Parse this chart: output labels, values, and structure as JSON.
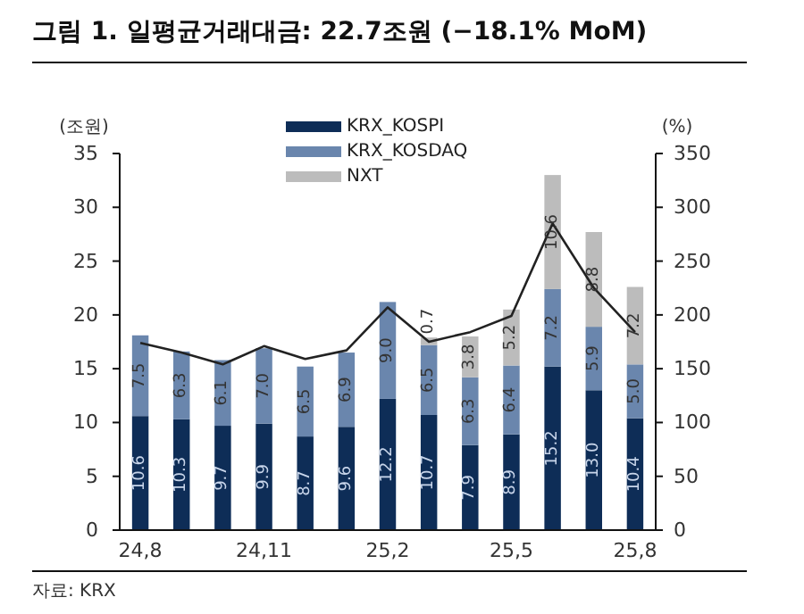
{
  "chart_data": {
    "type": "bar",
    "title": "그림 1. 일평균거래대금: 22.7조원 (−18.1% MoM)",
    "ylabel": "(조원)",
    "y2label": "(%)",
    "categories": [
      "24,8",
      null,
      null,
      "24,11",
      null,
      null,
      "25,2",
      null,
      null,
      "25,5",
      null,
      null,
      "25,8"
    ],
    "stacked": true,
    "series": [
      {
        "name": "KRX_KOSPI",
        "color": "#0e2d57",
        "values": [
          10.6,
          10.3,
          9.7,
          9.9,
          8.7,
          9.6,
          12.2,
          10.7,
          7.9,
          8.9,
          15.2,
          13.0,
          10.4
        ],
        "value_labels": [
          "10.6",
          "10.3",
          "9.7",
          "9.9",
          "8.7",
          "9.6",
          "12.2",
          "10.7",
          "7.9",
          "8.9",
          "15.2",
          "13.0",
          "10.4"
        ]
      },
      {
        "name": "KRX_KOSDAQ",
        "color": "#6a86ad",
        "values": [
          7.5,
          6.3,
          6.1,
          7.0,
          6.5,
          6.9,
          9.0,
          6.5,
          6.3,
          6.4,
          7.2,
          5.9,
          5.0
        ],
        "value_labels": [
          "7.5",
          "6.3",
          "6.1",
          "7.0",
          "6.5",
          "6.9",
          "9.0",
          "6.5",
          "6.3",
          "6.4",
          "7.2",
          "5.9",
          "5.0"
        ]
      },
      {
        "name": "NXT",
        "color": "#bcbcbc",
        "values": [
          null,
          null,
          null,
          null,
          null,
          null,
          null,
          0.7,
          3.8,
          5.2,
          10.6,
          8.8,
          7.2
        ],
        "value_labels": [
          null,
          null,
          null,
          null,
          null,
          null,
          null,
          "0.7",
          "3.8",
          "5.2",
          "10.6",
          "8.8",
          "7.2"
        ]
      },
      {
        "type": "line",
        "axis": "y2",
        "color": "#222222",
        "values": [
          174,
          165,
          154,
          171,
          159,
          167,
          207,
          175,
          184,
          199,
          285,
          225,
          184
        ]
      }
    ],
    "ylim": [
      0,
      35
    ],
    "yticks": [
      0,
      5,
      10,
      15,
      20,
      25,
      30,
      35
    ],
    "y2lim": [
      0,
      350
    ],
    "y2ticks": [
      0,
      50,
      100,
      150,
      200,
      250,
      300,
      350
    ],
    "legend": "top",
    "grid": false,
    "marker": "none",
    "line_style": "solid",
    "annotations": [
      "자료: KRX"
    ]
  }
}
